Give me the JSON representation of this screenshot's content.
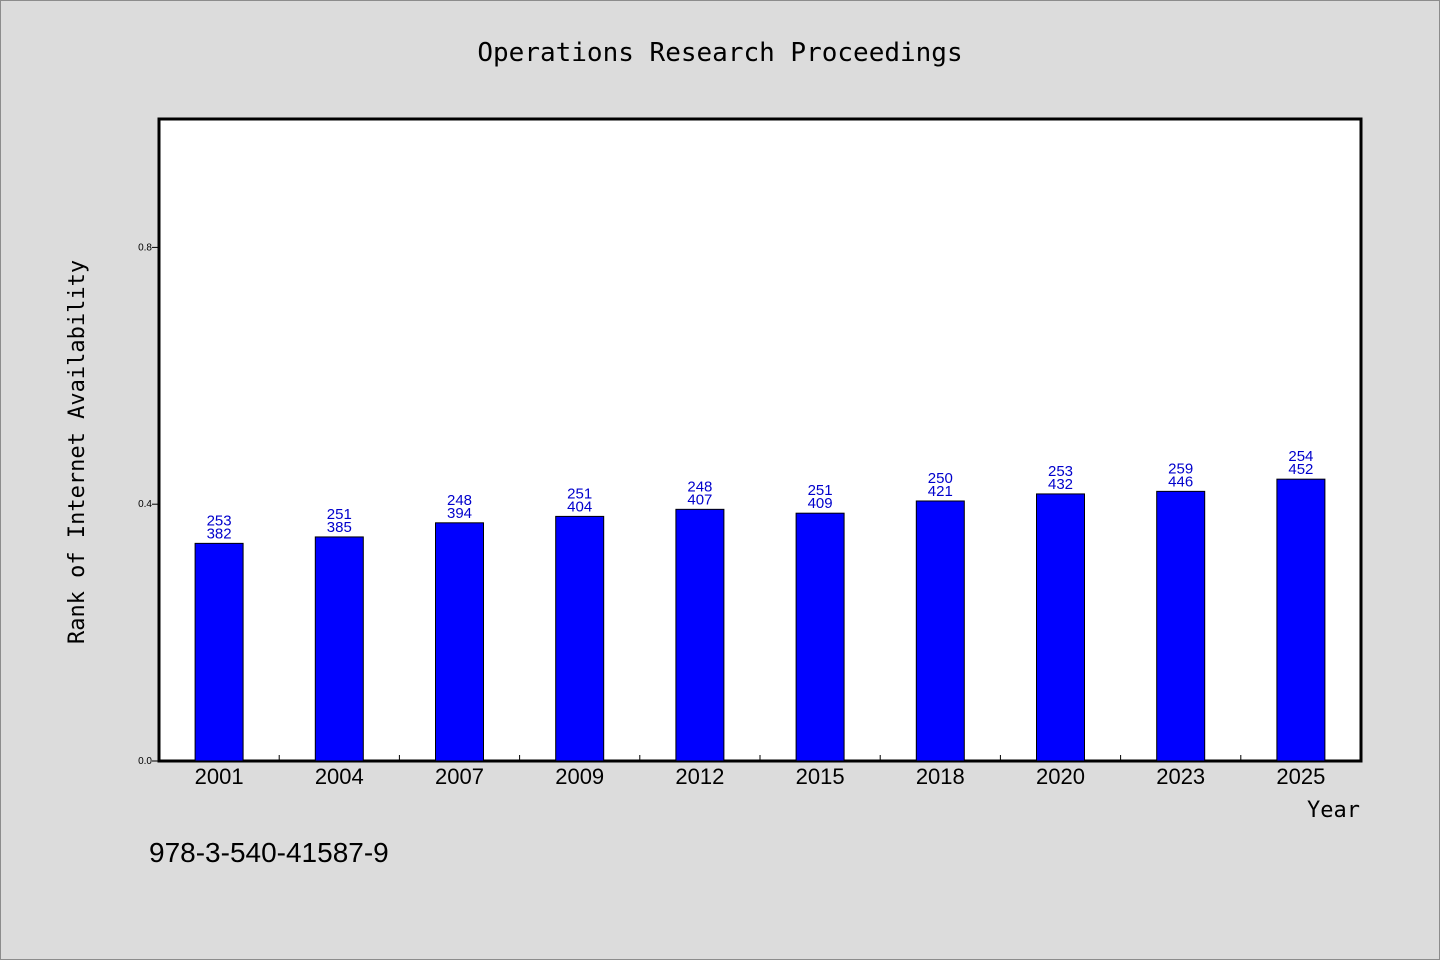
{
  "chart_data": {
    "type": "bar",
    "title": "Operations Research Proceedings",
    "xlabel": "Year",
    "ylabel": "Rank of Internet Availability",
    "categories": [
      "2001",
      "2004",
      "2007",
      "2009",
      "2012",
      "2015",
      "2018",
      "2020",
      "2023",
      "2025"
    ],
    "values": [
      0.339,
      0.349,
      0.371,
      0.381,
      0.392,
      0.386,
      0.405,
      0.416,
      0.42,
      0.439
    ],
    "data_labels_top": [
      "253",
      "251",
      "248",
      "251",
      "248",
      "251",
      "250",
      "253",
      "259",
      "254"
    ],
    "data_labels_bottom": [
      "382",
      "385",
      "394",
      "404",
      "407",
      "409",
      "421",
      "432",
      "446",
      "452"
    ],
    "yticks": [
      "0.0",
      "0.4",
      "0.8"
    ],
    "ylim": [
      0,
      1.0
    ],
    "grid": false,
    "bar_color": "#0000ff",
    "label_color": "#0000cc"
  },
  "footnote": "978-3-540-41587-9"
}
